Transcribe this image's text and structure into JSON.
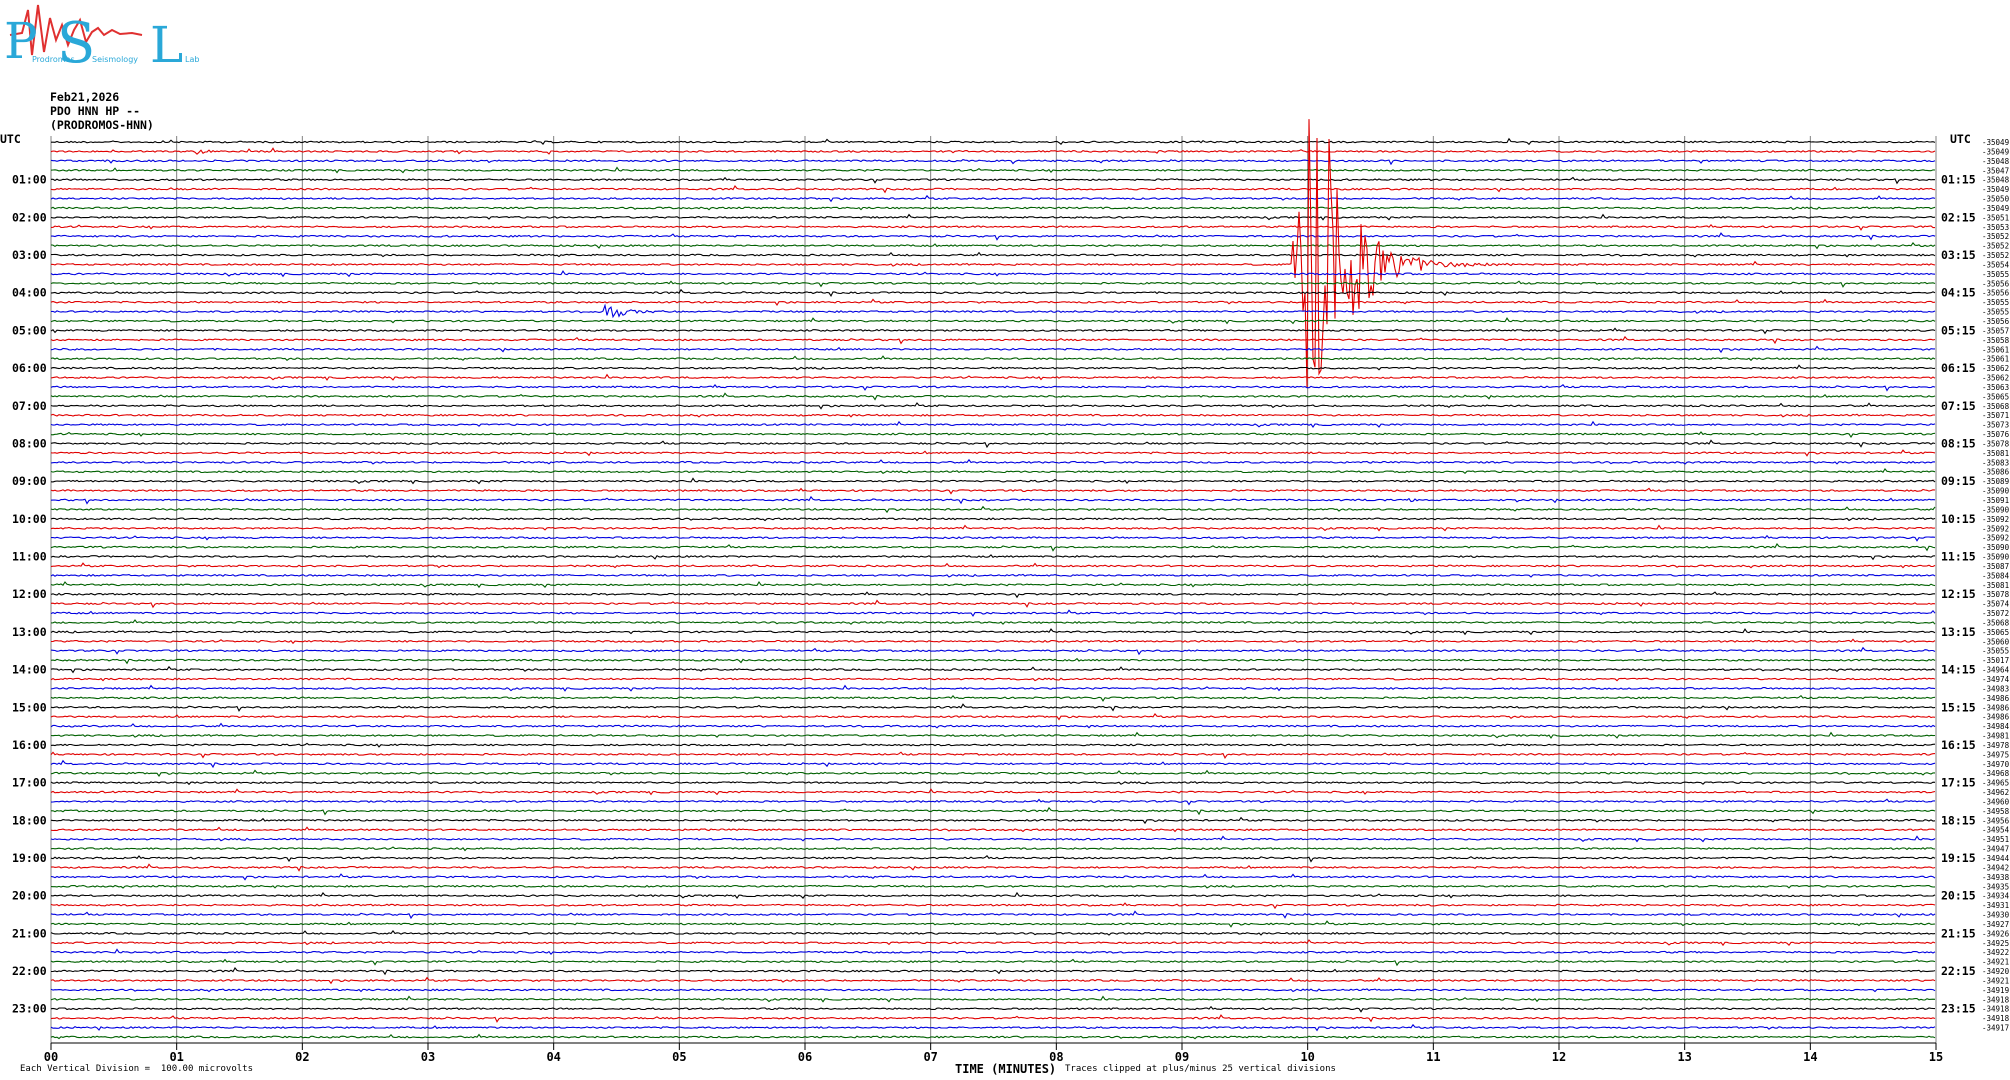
{
  "header": {
    "logo_letters": [
      "P",
      "S",
      "L"
    ],
    "logo_words": [
      "Prodromos",
      "Seismology",
      "Lab"
    ],
    "date": "Feb21,2026",
    "station": "PDO HNN HP --",
    "name": "(PRODROMOS-HNN)"
  },
  "axes": {
    "left_title": "UTC",
    "right_title": "UTC",
    "left_labels": [
      "01:00",
      "02:00",
      "03:00",
      "04:00",
      "05:00",
      "06:00",
      "07:00",
      "08:00",
      "09:00",
      "10:00",
      "11:00",
      "12:00",
      "13:00",
      "14:00",
      "15:00",
      "16:00",
      "17:00",
      "18:00",
      "19:00",
      "20:00",
      "21:00",
      "22:00",
      "23:00"
    ],
    "right_labels": [
      "01:15",
      "02:15",
      "03:15",
      "04:15",
      "05:15",
      "06:15",
      "07:15",
      "08:15",
      "09:15",
      "10:15",
      "11:15",
      "12:15",
      "13:15",
      "14:15",
      "15:15",
      "16:15",
      "17:15",
      "18:15",
      "19:15",
      "20:15",
      "21:15",
      "22:15",
      "23:15"
    ],
    "x_ticks": [
      "00",
      "01",
      "02",
      "03",
      "04",
      "05",
      "06",
      "07",
      "08",
      "09",
      "10",
      "11",
      "12",
      "13",
      "14",
      "15"
    ],
    "xlabel": "TIME (MINUTES)"
  },
  "footer": {
    "division_note": "Each Vertical Division =  100.00 microvolts",
    "clip_note": "Traces clipped at plus/minus 25 vertical divisions"
  },
  "chart_data": {
    "type": "line",
    "title": "",
    "trace_colors": [
      "#000000",
      "#e00000",
      "#0000e0",
      "#006000"
    ],
    "grid_color": "#808080",
    "xlim": [
      0,
      15
    ],
    "rows": 96,
    "rows_per_hour": 4,
    "offsets": [
      "-35049",
      "-35049",
      "-35048",
      "-35047",
      "-35048",
      "-35049",
      "-35050",
      "-35049",
      "-35051",
      "-35053",
      "-35052",
      "-35052",
      "-35052",
      "-35054",
      "-35055",
      "-35056",
      "-35056",
      "-35055",
      "-35055",
      "-35056",
      "-35057",
      "-35058",
      "-35061",
      "-35061",
      "-35062",
      "-35062",
      "-35063",
      "-35065",
      "-35068",
      "-35071",
      "-35073",
      "-35076",
      "-35078",
      "-35081",
      "-35083",
      "-35086",
      "-35089",
      "-35090",
      "-35091",
      "-35090",
      "-35092",
      "-35092",
      "-35092",
      "-35090",
      "-35090",
      "-35087",
      "-35084",
      "-35081",
      "-35078",
      "-35074",
      "-35072",
      "-35068",
      "-35065",
      "-35060",
      "-35055",
      "-35017",
      "-34964",
      "-34974",
      "-34983",
      "-34986",
      "-34986",
      "-34986",
      "-34984",
      "-34981",
      "-34978",
      "-34975",
      "-34970",
      "-34968",
      "-34965",
      "-34962",
      "-34960",
      "-34958",
      "-34956",
      "-34954",
      "-34951",
      "-34947",
      "-34944",
      "-34942",
      "-34938",
      "-34935",
      "-34934",
      "-34931",
      "-34930",
      "-34927",
      "-34926",
      "-34925",
      "-34922",
      "-34921",
      "-34920",
      "-34921",
      "-34919",
      "-34918",
      "-34918",
      "-34918",
      "-34917"
    ],
    "events": [
      {
        "row": 1,
        "start_min": 1.15,
        "end_min": 1.6,
        "amplitude": 4
      },
      {
        "row": 18,
        "start_min": 4.4,
        "end_min": 5.1,
        "amplitude": 10
      },
      {
        "row": 13,
        "start_min": 9.88,
        "end_min": 12.1,
        "amplitude": 200
      },
      {
        "row": 38,
        "start_min": 10.8,
        "end_min": 11.1,
        "amplitude": 3
      }
    ]
  }
}
